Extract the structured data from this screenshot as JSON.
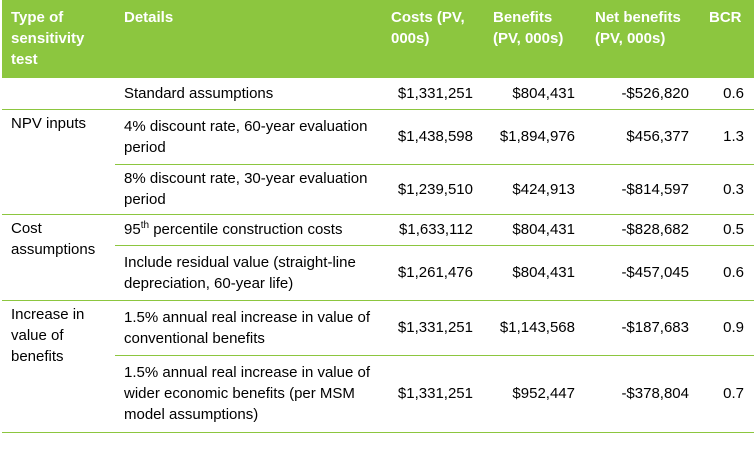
{
  "headers": {
    "type": "Type of sensitivity test",
    "details": "Details",
    "costs": "Costs (PV, 000s)",
    "benefits": "Benefits (PV, 000s)",
    "net": "Net benefits (PV, 000s)",
    "bcr": "BCR"
  },
  "rows": [
    {
      "group": "",
      "details": "Standard assumptions",
      "costs": "$1,331,251",
      "benefits": "$804,431",
      "net": "-$526,820",
      "bcr": "0.6"
    },
    {
      "group": "NPV inputs",
      "details": "4% discount rate, 60-year evaluation period",
      "costs": "$1,438,598",
      "benefits": "$1,894,976",
      "net": "$456,377",
      "bcr": "1.3"
    },
    {
      "group": "",
      "details": "8% discount rate, 30-year evaluation period",
      "costs": "$1,239,510",
      "benefits": "$424,913",
      "net": "-$814,597",
      "bcr": "0.3"
    },
    {
      "group": "Cost assumptions",
      "details_pre": "95",
      "details_sup": "th",
      "details": " percentile construction costs",
      "costs": "$1,633,112",
      "benefits": "$804,431",
      "net": "-$828,682",
      "bcr": "0.5"
    },
    {
      "group": "",
      "details": "Include residual value (straight-line depreciation, 60-year life)",
      "costs": "$1,261,476",
      "benefits": "$804,431",
      "net": "-$457,045",
      "bcr": "0.6"
    },
    {
      "group": "Increase in value of benefits",
      "details": "1.5% annual real increase in value of conventional benefits",
      "costs": "$1,331,251",
      "benefits": "$1,143,568",
      "net": "-$187,683",
      "bcr": "0.9"
    },
    {
      "group": "",
      "details": "1.5% annual real increase in value of wider economic benefits (per MSM model assumptions)",
      "costs": "$1,331,251",
      "benefits": "$952,447",
      "net": "-$378,804",
      "bcr": "0.7"
    }
  ]
}
